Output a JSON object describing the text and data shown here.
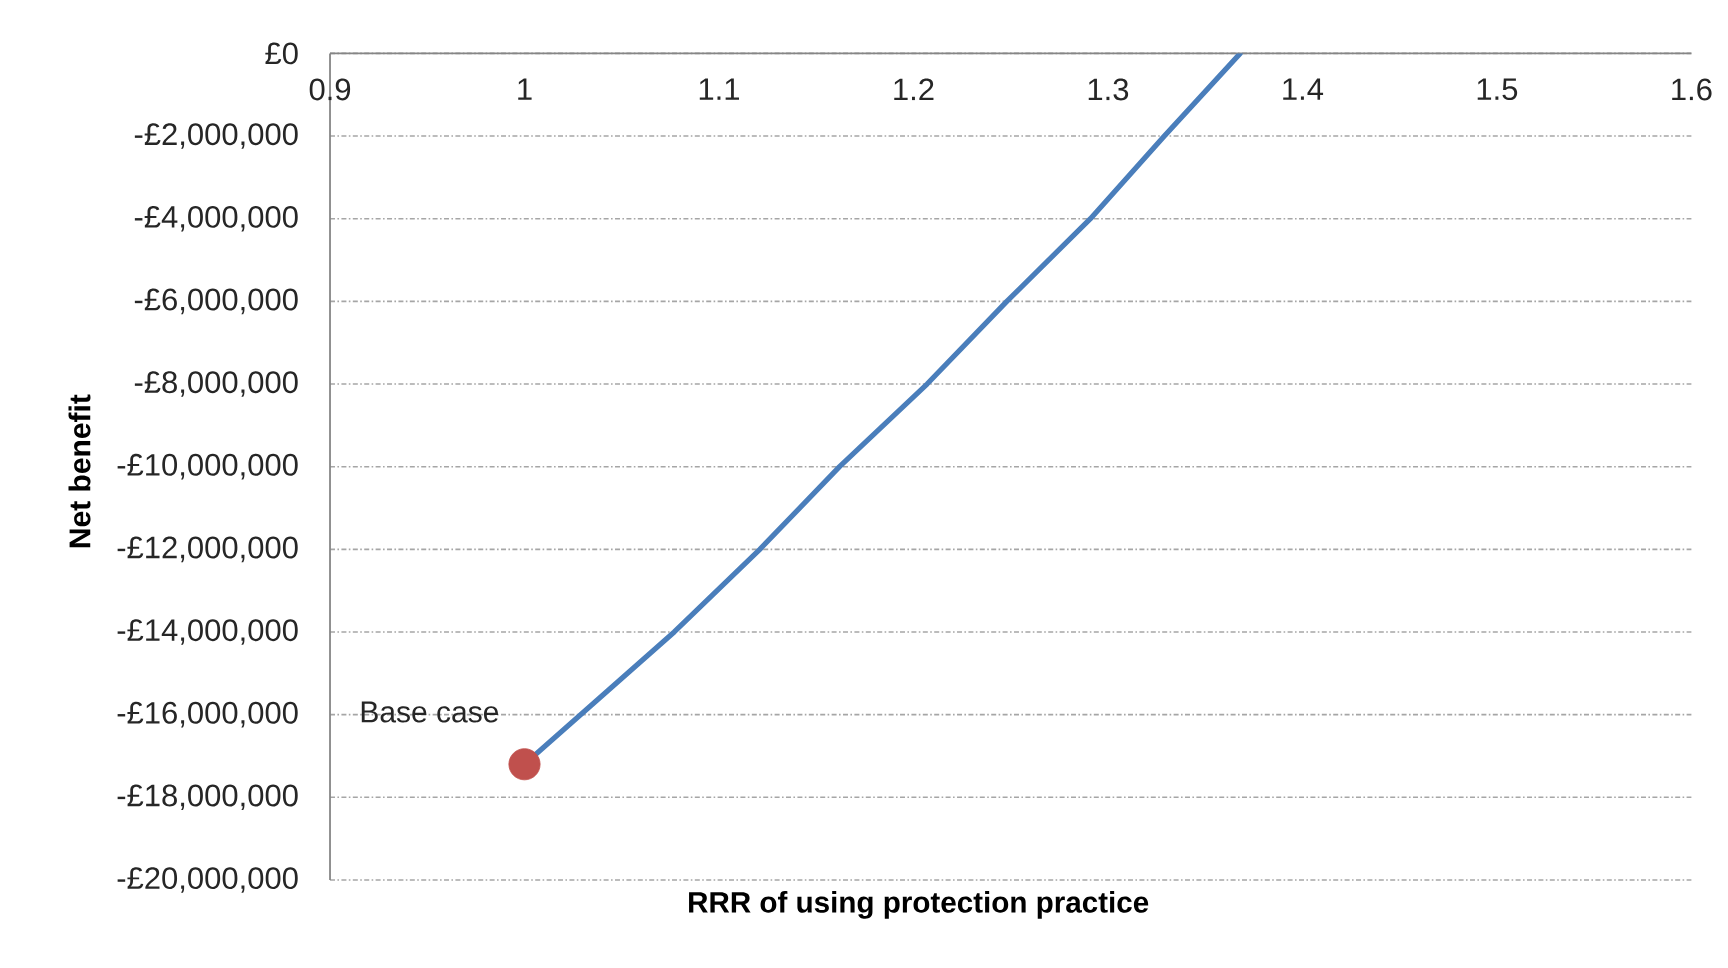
{
  "chart_data": {
    "type": "line",
    "xlabel": "RRR of using protection practice",
    "ylabel": "Net benefit",
    "xlim": [
      0.9,
      1.6
    ],
    "xticks": [
      0.9,
      1,
      1.1,
      1.2,
      1.3,
      1.4,
      1.5,
      1.6
    ],
    "ylim": [
      -20000000,
      0
    ],
    "yticks": [
      {
        "value": 0,
        "label": "£0"
      },
      {
        "value": -2000000,
        "label": "-£2,000,000"
      },
      {
        "value": -4000000,
        "label": "-£4,000,000"
      },
      {
        "value": -6000000,
        "label": "-£6,000,000"
      },
      {
        "value": -8000000,
        "label": "-£8,000,000"
      },
      {
        "value": -10000000,
        "label": "-£10,000,000"
      },
      {
        "value": -12000000,
        "label": "-£12,000,000"
      },
      {
        "value": -14000000,
        "label": "-£14,000,000"
      },
      {
        "value": -16000000,
        "label": "-£16,000,000"
      },
      {
        "value": -18000000,
        "label": "-£18,000,000"
      },
      {
        "value": -20000000,
        "label": "-£20,000,000"
      }
    ],
    "grid": "y",
    "series": [
      {
        "color": "#4a7ebb",
        "x": [
          1,
          1.077,
          1.121,
          1.162,
          1.207,
          1.248,
          1.291,
          1.329,
          1.368
        ],
        "values": [
          -17200000,
          -14000000,
          -12000000,
          -10000000,
          -8000000,
          -6000000,
          -4000000,
          -2000000,
          0
        ]
      },
      {
        "type": "scatter",
        "color": "#c0504d",
        "x": [
          1
        ],
        "values": [
          -17200000
        ]
      }
    ],
    "annotations": [
      {
        "text": "Base case",
        "x": 1,
        "y": -17200000
      }
    ]
  }
}
